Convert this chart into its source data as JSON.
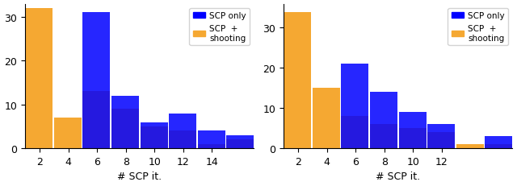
{
  "left": {
    "blue": [
      0,
      0,
      31,
      12,
      6,
      8,
      4,
      3
    ],
    "orange": [
      32,
      7,
      13,
      9,
      5,
      4,
      1,
      2
    ],
    "xleft": [
      1,
      3,
      5,
      7,
      9,
      11,
      13,
      15
    ],
    "xticks": [
      2,
      4,
      6,
      8,
      10,
      12,
      14
    ],
    "ylim": [
      0,
      33
    ],
    "yticks": [
      0,
      10,
      20,
      30
    ]
  },
  "right": {
    "blue": [
      0,
      0,
      21,
      14,
      9,
      6,
      0,
      3
    ],
    "orange": [
      34,
      15,
      8,
      6,
      5,
      4,
      1,
      1
    ],
    "xleft": [
      1,
      3,
      5,
      7,
      9,
      11,
      13,
      15
    ],
    "xticks": [
      2,
      4,
      6,
      8,
      10,
      12
    ],
    "ylim": [
      0,
      36
    ],
    "yticks": [
      0,
      10,
      20,
      30
    ]
  },
  "blue_color": "#0000ff",
  "orange_color": "#f5a832",
  "legend_label_blue": "SCP only",
  "legend_label_orange": "SCP  +\nshooting",
  "xlabel": "# SCP it.",
  "bar_width": 1.92
}
